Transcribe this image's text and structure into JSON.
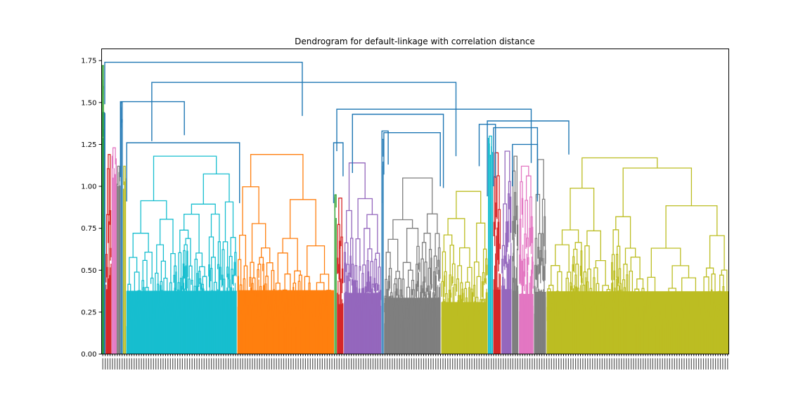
{
  "chart_data": {
    "type": "dendrogram",
    "title": "Dendrogram for default-linkage with correlation distance",
    "xlabel": "",
    "ylabel": "",
    "ylim": [
      0,
      1.82
    ],
    "yticks": [
      0.0,
      0.25,
      0.5,
      0.75,
      1.0,
      1.25,
      1.5,
      1.75
    ],
    "ytick_labels": [
      "0.00",
      "0.25",
      "0.50",
      "0.75",
      "1.00",
      "1.25",
      "1.50",
      "1.75"
    ],
    "n_leaves": 890,
    "above_threshold_color": "#1f77b4",
    "top_links": [
      {
        "height": 1.74,
        "left_center": 0.005,
        "right_center": 0.32,
        "color": "#1f77b4"
      },
      {
        "height": 1.62,
        "left_center": 0.08,
        "right_center": 0.565,
        "color": "#1f77b4"
      },
      {
        "height": 1.505,
        "left_center": 0.03,
        "right_center": 0.132,
        "color": "#1f77b4"
      },
      {
        "height": 1.46,
        "left_center": 0.375,
        "right_center": 0.685,
        "color": "#1f77b4"
      },
      {
        "height": 1.43,
        "left_center": 0.4,
        "right_center": 0.545,
        "color": "#1f77b4"
      },
      {
        "height": 1.39,
        "left_center": 0.615,
        "right_center": 0.745,
        "color": "#1f77b4"
      },
      {
        "height": 1.37,
        "left_center": 0.602,
        "right_center": 0.628,
        "color": "#1f77b4"
      },
      {
        "height": 1.35,
        "left_center": 0.625,
        "right_center": 0.695,
        "color": "#1f77b4"
      },
      {
        "height": 1.33,
        "left_center": 0.447,
        "right_center": 0.457,
        "color": "#1f77b4"
      },
      {
        "height": 1.32,
        "left_center": 0.45,
        "right_center": 0.54,
        "color": "#1f77b4"
      },
      {
        "height": 1.26,
        "left_center": 0.04,
        "right_center": 0.22,
        "color": "#1f77b4"
      },
      {
        "height": 1.26,
        "left_center": 0.37,
        "right_center": 0.385,
        "color": "#1f77b4"
      },
      {
        "height": 1.25,
        "left_center": 0.655,
        "right_center": 0.695,
        "color": "#1f77b4"
      }
    ],
    "clusters": [
      {
        "color": "#1f77b4",
        "x_range": [
          0.0,
          0.006
        ],
        "height": 1.44
      },
      {
        "color": "#2ca02c",
        "x_range": [
          0.0,
          0.004
        ],
        "height": 1.72
      },
      {
        "color": "#d62728",
        "x_range": [
          0.006,
          0.016
        ],
        "height": 1.19
      },
      {
        "color": "#e377c2",
        "x_range": [
          0.016,
          0.024
        ],
        "height": 1.23
      },
      {
        "color": "#7f7f7f",
        "x_range": [
          0.024,
          0.03
        ],
        "height": 1.12
      },
      {
        "color": "#1f77b4",
        "x_range": [
          0.03,
          0.034
        ],
        "height": 1.5
      },
      {
        "color": "#bcbd22",
        "x_range": [
          0.034,
          0.039
        ],
        "height": 1.12
      },
      {
        "color": "#17becf",
        "x_range": [
          0.039,
          0.216
        ],
        "height": 1.18
      },
      {
        "color": "#ff7f0e",
        "x_range": [
          0.216,
          0.371
        ],
        "height": 1.19
      },
      {
        "color": "#2ca02c",
        "x_range": [
          0.371,
          0.375
        ],
        "height": 0.95
      },
      {
        "color": "#d62728",
        "x_range": [
          0.375,
          0.386
        ],
        "height": 0.93
      },
      {
        "color": "#9467bd",
        "x_range": [
          0.386,
          0.446
        ],
        "height": 1.14
      },
      {
        "color": "#1f77b4",
        "x_range": [
          0.446,
          0.45
        ],
        "height": 1.28
      },
      {
        "color": "#7f7f7f",
        "x_range": [
          0.45,
          0.541
        ],
        "height": 1.05
      },
      {
        "color": "#bcbd22",
        "x_range": [
          0.541,
          0.616
        ],
        "height": 0.97
      },
      {
        "color": "#17becf",
        "x_range": [
          0.616,
          0.624
        ],
        "height": 1.3
      },
      {
        "color": "#d62728",
        "x_range": [
          0.624,
          0.637
        ],
        "height": 1.2
      },
      {
        "color": "#9467bd",
        "x_range": [
          0.637,
          0.654
        ],
        "height": 1.21
      },
      {
        "color": "#7f7f7f",
        "x_range": [
          0.654,
          0.665
        ],
        "height": 1.18
      },
      {
        "color": "#e377c2",
        "x_range": [
          0.665,
          0.689
        ],
        "height": 1.12
      },
      {
        "color": "#7f7f7f",
        "x_range": [
          0.689,
          0.709
        ],
        "height": 1.16
      },
      {
        "color": "#bcbd22",
        "x_range": [
          0.709,
          1.0
        ],
        "height": 1.17
      }
    ]
  }
}
